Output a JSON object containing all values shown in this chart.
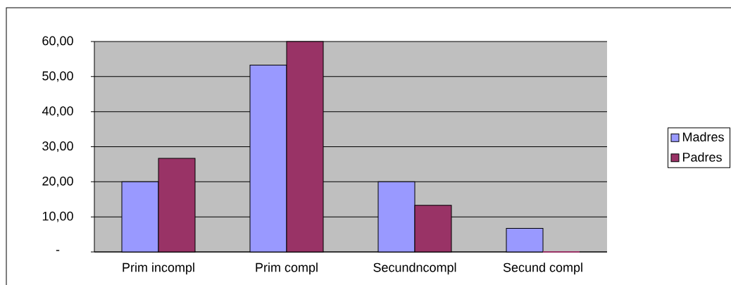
{
  "chart_data": {
    "type": "bar",
    "categories": [
      "Prim incompl",
      "Prim compl",
      "Secundncompl",
      "Secund compl"
    ],
    "series": [
      {
        "name": "Madres",
        "color": "#9999ff",
        "values": [
          20,
          53.3,
          20,
          6.7
        ]
      },
      {
        "name": "Padres",
        "color": "#993366",
        "values": [
          26.7,
          60,
          13.3,
          0
        ]
      }
    ],
    "ylim": [
      0,
      60
    ],
    "yticks": [
      {
        "value": 0,
        "label": "-"
      },
      {
        "value": 10,
        "label": "10,00"
      },
      {
        "value": 20,
        "label": "20,00"
      },
      {
        "value": 30,
        "label": "30,00"
      },
      {
        "value": 40,
        "label": "40,00"
      },
      {
        "value": 50,
        "label": "50,00"
      },
      {
        "value": 60,
        "label": "60,00"
      }
    ],
    "grid": "y",
    "legend": "right"
  }
}
